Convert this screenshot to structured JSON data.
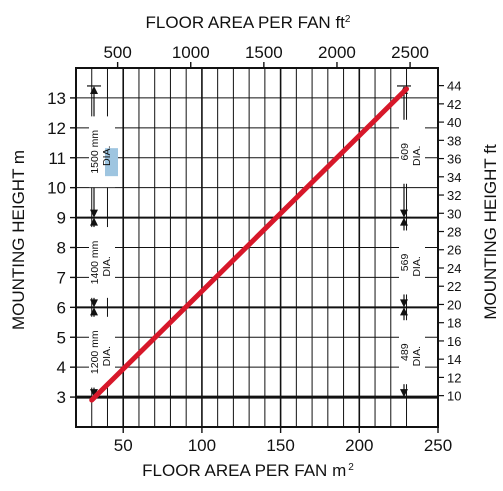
{
  "chart_data": {
    "type": "line",
    "title_top": "FLOOR AREA PER FAN",
    "title_top_unit": "ft",
    "title_top_unit_sup": "2",
    "xlabel": "FLOOR AREA PER FAN",
    "xlabel_unit": "m",
    "xlabel_unit_sup": "2",
    "ylabel_left": "MOUNTING HEIGHT m",
    "ylabel_right": "MOUNTING HEIGHT ft",
    "xlim": [
      20,
      250
    ],
    "ylim": [
      2,
      14
    ],
    "x_ticks": [
      "50",
      "100",
      "150",
      "200",
      "250"
    ],
    "x_tick_values": [
      50,
      100,
      150,
      200,
      250
    ],
    "top_ticks": [
      "500",
      "1000",
      "1500",
      "2000",
      "2500"
    ],
    "top_tick_values": [
      500,
      1000,
      1500,
      2000,
      2500
    ],
    "y_ticks_left": [
      "3",
      "4",
      "5",
      "6",
      "7",
      "8",
      "9",
      "10",
      "11",
      "12",
      "13"
    ],
    "y_tick_left_values": [
      3,
      4,
      5,
      6,
      7,
      8,
      9,
      10,
      11,
      12,
      13
    ],
    "y_ticks_right": [
      "10",
      "12",
      "14",
      "16",
      "18",
      "20",
      "22",
      "24",
      "26",
      "28",
      "30",
      "32",
      "34",
      "36",
      "38",
      "40",
      "42",
      "44"
    ],
    "y_tick_right_values": [
      10,
      12,
      14,
      16,
      18,
      20,
      22,
      24,
      26,
      28,
      30,
      32,
      34,
      36,
      38,
      40,
      42,
      44
    ],
    "grid": true,
    "series": [
      {
        "color": "#d7182a",
        "x": [
          30,
          230
        ],
        "y": [
          2.9,
          13.3
        ]
      }
    ],
    "left_bands": [
      {
        "label": "1500 mm",
        "sub": "DIA.",
        "from": 9,
        "to": 13.4,
        "highlight_color": "#9ec5e0"
      },
      {
        "label": "1400 mm",
        "sub": "DIA.",
        "from": 6,
        "to": 9
      },
      {
        "label": "1200 mm",
        "sub": "DIA.",
        "from": 3,
        "to": 6
      }
    ],
    "right_bands": [
      {
        "label": "609",
        "sub": "DIA.",
        "from": 9,
        "to": 13.4
      },
      {
        "label": "569",
        "sub": "DIA.",
        "from": 6,
        "to": 9
      },
      {
        "label": "489",
        "sub": "DIA.",
        "from": 3,
        "to": 6
      }
    ]
  }
}
